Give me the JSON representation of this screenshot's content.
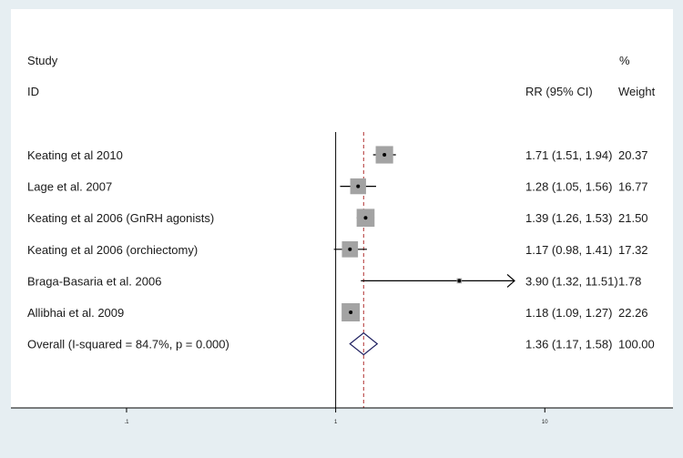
{
  "chart_data": {
    "type": "forest",
    "x_scale": "log",
    "xlim": [
      0.028,
      41
    ],
    "x_ticks": [
      ".1",
      "1",
      "10"
    ],
    "x_tick_values": [
      0.1,
      1,
      10
    ],
    "null_line": 1,
    "overall_line": 1.36,
    "headers": {
      "study_top": "Study",
      "study_bottom": "ID",
      "effect": "RR (95% CI)",
      "weight_top": "%",
      "weight_bottom": "Weight"
    },
    "studies": [
      {
        "label": "Keating et al 2010",
        "rr": 1.71,
        "lo": 1.51,
        "hi": 1.94,
        "ci_text": "1.71 (1.51, 1.94)",
        "weight": 20.37,
        "weight_text": "20.37"
      },
      {
        "label": "Lage et al. 2007",
        "rr": 1.28,
        "lo": 1.05,
        "hi": 1.56,
        "ci_text": "1.28 (1.05, 1.56)",
        "weight": 16.77,
        "weight_text": "16.77"
      },
      {
        "label": "Keating et al 2006 (GnRH agonists)",
        "rr": 1.39,
        "lo": 1.26,
        "hi": 1.53,
        "ci_text": "1.39 (1.26, 1.53)",
        "weight": 21.5,
        "weight_text": "21.50"
      },
      {
        "label": "Keating et al 2006 (orchiectomy)",
        "rr": 1.17,
        "lo": 0.98,
        "hi": 1.41,
        "ci_text": "1.17 (0.98, 1.41)",
        "weight": 17.32,
        "weight_text": "17.32"
      },
      {
        "label": "Braga-Basaria et al. 2006",
        "rr": 3.9,
        "lo": 1.32,
        "hi": 11.51,
        "ci_text": "3.90 (1.32, 11.51)",
        "weight": 1.78,
        "weight_text": "1.78",
        "arrow_right": true
      },
      {
        "label": "Allibhai et al. 2009",
        "rr": 1.18,
        "lo": 1.09,
        "hi": 1.27,
        "ci_text": "1.18 (1.09, 1.27)",
        "weight": 22.26,
        "weight_text": "22.26"
      }
    ],
    "overall": {
      "label": "Overall  (I-squared = 84.7%, p = 0.000)",
      "rr": 1.36,
      "lo": 1.17,
      "hi": 1.58,
      "ci_text": "1.36 (1.17, 1.58)",
      "weight_text": "100.00"
    },
    "colors": {
      "box": "#a3a3a3",
      "line": "#000000",
      "diamond": "#1f2060",
      "overall_line": "#b03030",
      "panel": "#ffffff",
      "background": "#e6eef2"
    }
  }
}
